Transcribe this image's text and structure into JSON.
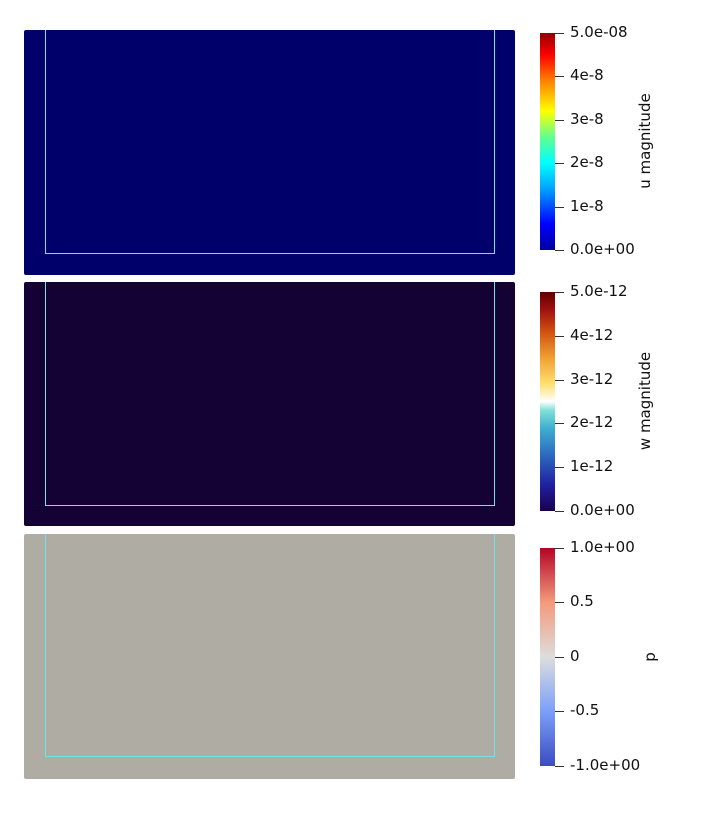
{
  "panels": [
    {
      "name": "u-magnitude",
      "field_title": "u magnitude",
      "field_value_level": 0,
      "panel_color": "#00006a",
      "colormap": "jet",
      "ticks": [
        "5.0e-08",
        "4e-8",
        "3e-8",
        "2e-8",
        "1e-8",
        "0.0e+00"
      ]
    },
    {
      "name": "w-magnitude",
      "field_title": "w magnitude",
      "field_value_level": 0,
      "panel_color": "#130233",
      "colormap": "rainbow-desaturated-blue-white-orange",
      "ticks": [
        "5.0e-12",
        "4e-12",
        "3e-12",
        "2e-12",
        "1e-12",
        "0.0e+00"
      ]
    },
    {
      "name": "p",
      "field_title": "p",
      "field_value_level": 0.5,
      "panel_color": "#afaca4",
      "colormap": "cool-to-warm",
      "ticks": [
        "1.0e+00",
        "0.5",
        "0",
        "-0.5",
        "-1.0e+00"
      ]
    }
  ],
  "colors": {
    "outline": "#6fe3e8",
    "background": "#ffffff"
  }
}
